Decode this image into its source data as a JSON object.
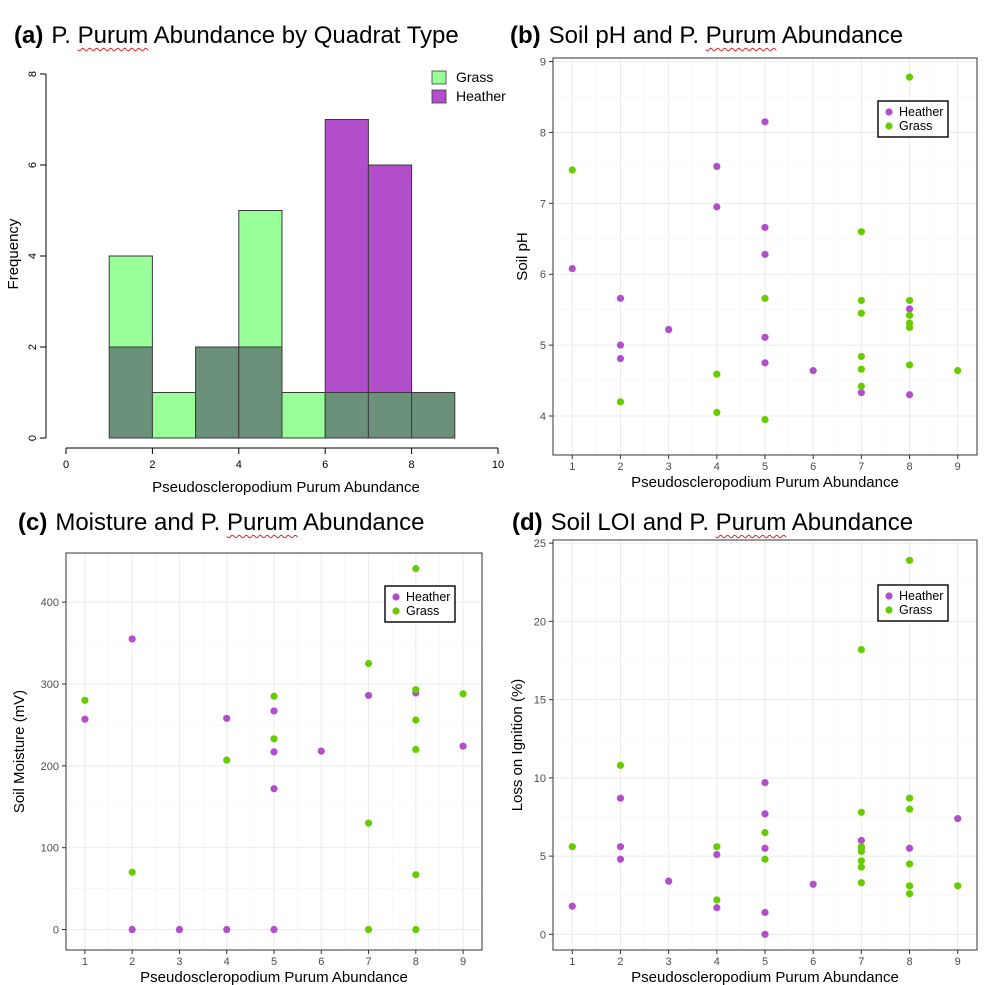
{
  "panels": {
    "a": {
      "letter": "(a)",
      "pre": "P. ",
      "squiggle": "Purum",
      "post": " Abundance by Quadrat Type"
    },
    "b": {
      "letter": "(b)",
      "pre": "Soil pH and P. ",
      "squiggle": "Purum",
      "post": " Abundance"
    },
    "c": {
      "letter": "(c)",
      "pre": "Moisture and P. ",
      "squiggle": "Purum",
      "post": " Abundance"
    },
    "d": {
      "letter": "(d)",
      "pre": "Soil LOI and P. ",
      "squiggle": "Purum",
      "post": " Abundance"
    }
  },
  "colors": {
    "heather": "#b24dcc",
    "grass_point": "#66cc00",
    "grass_bar": "#99ff99",
    "overlap": "#6b917a",
    "heather_bar": "#b24dcc",
    "grid": "#ebebeb"
  },
  "chart_data": [
    {
      "type": "bar",
      "title": "P. Purum Abundance by Quadrat Type",
      "xlabel": "Pseudoscleropodium Purum Abundance",
      "ylabel": "Frequency",
      "xlim": [
        0,
        10
      ],
      "ylim": [
        0,
        8
      ],
      "xticks": [
        0,
        2,
        4,
        6,
        8,
        10
      ],
      "yticks": [
        0,
        2,
        4,
        6,
        8
      ],
      "bins": [
        [
          1,
          2
        ],
        [
          2,
          3
        ],
        [
          3,
          4
        ],
        [
          4,
          5
        ],
        [
          5,
          6
        ],
        [
          6,
          7
        ],
        [
          7,
          8
        ],
        [
          8,
          9
        ]
      ],
      "series": [
        {
          "name": "Grass",
          "values": [
            4,
            1,
            2,
            5,
            1,
            1,
            1,
            1
          ]
        },
        {
          "name": "Heather",
          "values": [
            2,
            0,
            2,
            2,
            0,
            7,
            6,
            1
          ]
        }
      ],
      "legend": [
        "Grass",
        "Heather"
      ]
    },
    {
      "type": "scatter",
      "title": "Soil pH and P. Purum Abundance",
      "xlabel": "Pseudoscleropodium Purum Abundance",
      "ylabel": "Soil pH",
      "xlim": [
        0.6,
        9.4
      ],
      "ylim": [
        3.45,
        9.05
      ],
      "xticks": [
        1,
        2,
        3,
        4,
        5,
        6,
        7,
        8,
        9
      ],
      "yticks": [
        4,
        5,
        6,
        7,
        8,
        9
      ],
      "series": [
        {
          "name": "Heather",
          "x": [
            1,
            2,
            2,
            2,
            3,
            4,
            4,
            5,
            5,
            5,
            5,
            5,
            6,
            7,
            8,
            8
          ],
          "y": [
            6.08,
            5.66,
            5.0,
            4.81,
            5.22,
            7.52,
            6.95,
            8.15,
            6.66,
            6.28,
            5.11,
            4.75,
            4.64,
            4.33,
            5.51,
            4.3
          ]
        },
        {
          "name": "Grass",
          "x": [
            1,
            2,
            4,
            4,
            5,
            5,
            7,
            7,
            7,
            7,
            7,
            7,
            8,
            8,
            8,
            8,
            8,
            8,
            9
          ],
          "y": [
            7.47,
            4.2,
            4.59,
            4.05,
            5.66,
            3.95,
            6.6,
            5.63,
            5.45,
            4.84,
            4.66,
            4.42,
            8.78,
            5.63,
            5.42,
            5.31,
            5.25,
            4.72,
            4.64
          ]
        }
      ],
      "legend": [
        "Heather",
        "Grass"
      ]
    },
    {
      "type": "scatter",
      "title": "Moisture and P. Purum Abundance",
      "xlabel": "Pseudoscleropodium Purum Abundance",
      "ylabel": "Soil Moisture (mV)",
      "xlim": [
        0.6,
        9.4
      ],
      "ylim": [
        -25,
        460
      ],
      "xticks": [
        1,
        2,
        3,
        4,
        5,
        6,
        7,
        8,
        9
      ],
      "yticks": [
        0,
        100,
        200,
        300,
        400
      ],
      "series": [
        {
          "name": "Heather",
          "x": [
            1,
            2,
            2,
            3,
            4,
            4,
            5,
            5,
            5,
            5,
            6,
            7,
            8,
            9
          ],
          "y": [
            257,
            355,
            0,
            0,
            258,
            0,
            267,
            217,
            172,
            0,
            218,
            286,
            289,
            224
          ]
        },
        {
          "name": "Grass",
          "x": [
            1,
            2,
            4,
            5,
            5,
            7,
            7,
            7,
            8,
            8,
            8,
            8,
            8,
            8,
            9
          ],
          "y": [
            280,
            70,
            207,
            285,
            233,
            325,
            130,
            0,
            441,
            293,
            256,
            220,
            67,
            0,
            288
          ]
        }
      ],
      "legend": [
        "Heather",
        "Grass"
      ]
    },
    {
      "type": "scatter",
      "title": "Soil LOI and P. Purum Abundance",
      "xlabel": "Pseudoscleropodium Purum Abundance",
      "ylabel": "Loss on Ignition (%)",
      "xlim": [
        0.6,
        9.4
      ],
      "ylim": [
        -1.0,
        25.2
      ],
      "xticks": [
        1,
        2,
        3,
        4,
        5,
        6,
        7,
        8,
        9
      ],
      "yticks": [
        0,
        5,
        10,
        15,
        20,
        25
      ],
      "series": [
        {
          "name": "Heather",
          "x": [
            1,
            2,
            2,
            2,
            3,
            4,
            4,
            5,
            5,
            5,
            5,
            5,
            6,
            7,
            7,
            8,
            9
          ],
          "y": [
            1.8,
            8.7,
            5.6,
            4.8,
            3.4,
            5.1,
            1.7,
            9.7,
            7.7,
            5.5,
            1.4,
            0,
            3.2,
            6.0,
            5.5,
            5.5,
            7.4
          ]
        },
        {
          "name": "Grass",
          "x": [
            1,
            2,
            4,
            4,
            5,
            5,
            7,
            7,
            7,
            7,
            7,
            7,
            7,
            8,
            8,
            8,
            8,
            8,
            8,
            9
          ],
          "y": [
            5.6,
            10.8,
            5.6,
            2.2,
            6.5,
            4.8,
            18.2,
            7.8,
            5.6,
            5.3,
            4.7,
            4.3,
            3.3,
            23.9,
            8.7,
            8.0,
            4.5,
            3.1,
            2.6,
            3.1
          ]
        }
      ],
      "legend": [
        "Heather",
        "Grass"
      ]
    }
  ]
}
